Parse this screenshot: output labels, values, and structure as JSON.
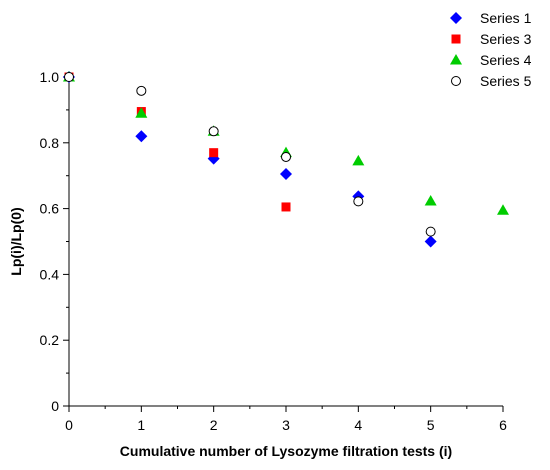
{
  "chart_data": {
    "type": "scatter",
    "title": "",
    "xlabel": "Cumulative number of Lysozyme filtration tests (i)",
    "ylabel": "Lp(i)/Lp(0)",
    "xlim": [
      0,
      6
    ],
    "ylim": [
      0,
      1.0
    ],
    "xticks": [
      "0",
      "1",
      "2",
      "3",
      "4",
      "5",
      "6"
    ],
    "yticks": [
      "0",
      "0.2",
      "0.4",
      "0.6",
      "0.8",
      "1.0"
    ],
    "legend_position": "top-right",
    "grid": false,
    "series": [
      {
        "name": "Series 1",
        "marker": "diamond",
        "color": "#0000ff",
        "points": [
          [
            0,
            1.0
          ],
          [
            1,
            0.82
          ],
          [
            2,
            0.752
          ],
          [
            3,
            0.705
          ],
          [
            4,
            0.637
          ],
          [
            5,
            0.5
          ]
        ]
      },
      {
        "name": "Series 3",
        "marker": "square",
        "color": "#ff0000",
        "points": [
          [
            0,
            1.0
          ],
          [
            1,
            0.895
          ],
          [
            2,
            0.77
          ],
          [
            3,
            0.605
          ]
        ]
      },
      {
        "name": "Series 4",
        "marker": "triangle",
        "color": "#00cc00",
        "points": [
          [
            0,
            1.0
          ],
          [
            1,
            0.89
          ],
          [
            2,
            0.835
          ],
          [
            3,
            0.77
          ],
          [
            4,
            0.745
          ],
          [
            5,
            0.623
          ],
          [
            6,
            0.595
          ]
        ]
      },
      {
        "name": "Series 5",
        "marker": "open-circle",
        "color": "#000000",
        "points": [
          [
            0,
            1.0
          ],
          [
            1,
            0.958
          ],
          [
            2,
            0.835
          ],
          [
            3,
            0.757
          ],
          [
            4,
            0.622
          ],
          [
            5,
            0.53
          ]
        ]
      }
    ]
  }
}
